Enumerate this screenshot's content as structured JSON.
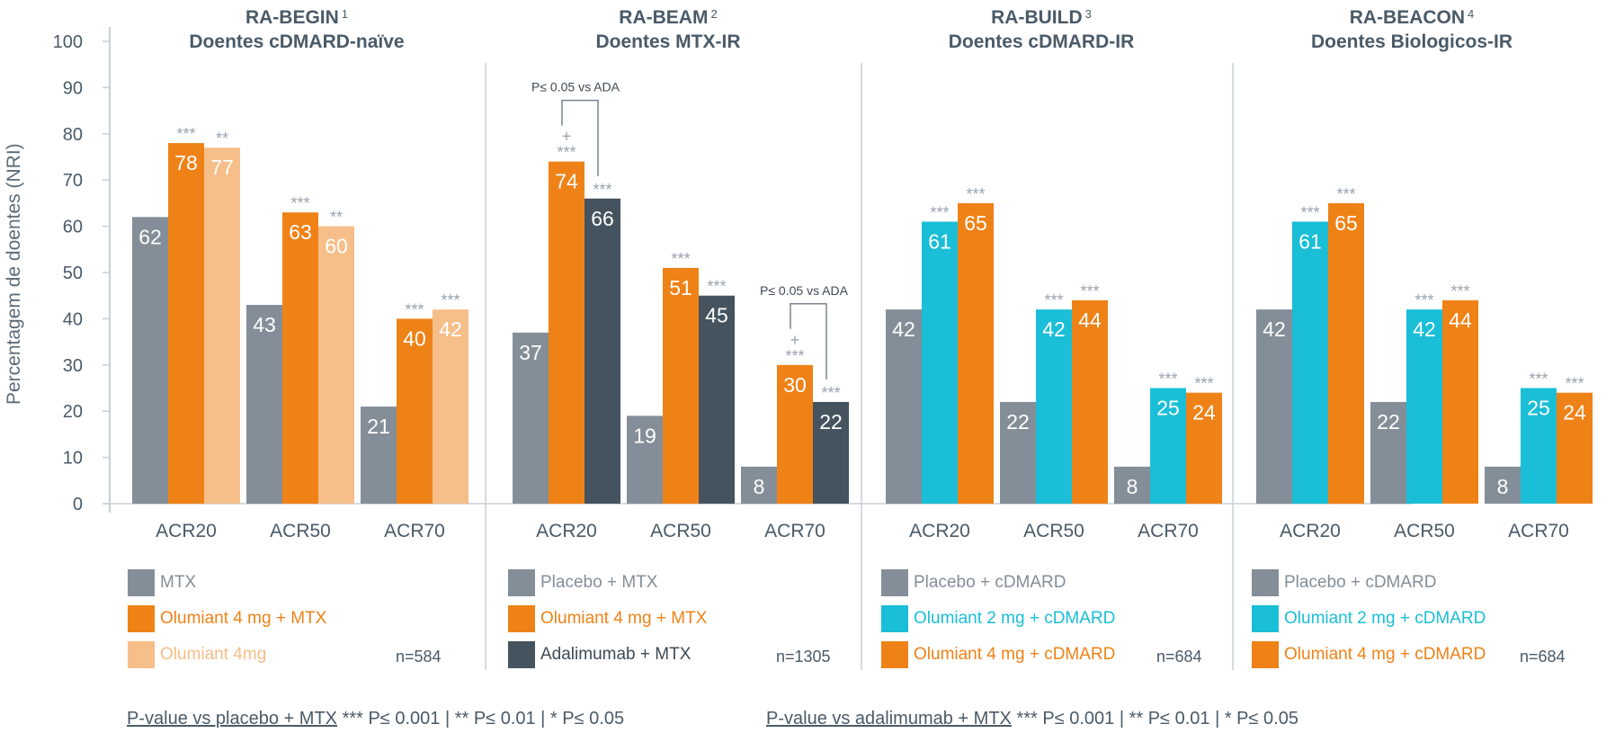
{
  "colors": {
    "gray": "#848e98",
    "orange": "#ef8217",
    "light_orange": "#f6be88",
    "dark_slate": "#44535e",
    "cyan": "#1abed6",
    "axis": "#c9cfd5",
    "text": "#4a5a68",
    "asterisk": "#9aa3ad"
  },
  "chart_data": {
    "type": "bar",
    "ylabel": "Percentagem de doentes (NRI)",
    "ylim": [
      0,
      100
    ],
    "yticks": [
      "0",
      "10",
      "20",
      "30",
      "40",
      "50",
      "60",
      "70",
      "80",
      "90",
      "100"
    ],
    "grid": false,
    "panels": [
      {
        "study": "RA-BEGIN",
        "ref": "1",
        "population": "Doentes cDMARD-naïve",
        "categories": [
          "ACR20",
          "ACR50",
          "ACR70"
        ],
        "series": [
          {
            "name": "MTX",
            "color_key": "gray",
            "values": [
              62,
              43,
              21
            ],
            "sig": [
              "",
              "",
              ""
            ]
          },
          {
            "name": "Olumiant 4 mg + MTX",
            "color_key": "orange",
            "values": [
              78,
              63,
              40
            ],
            "sig": [
              "***",
              "***",
              "***"
            ]
          },
          {
            "name": "Olumiant 4mg",
            "color_key": "light_orange",
            "values": [
              77,
              60,
              42
            ],
            "sig": [
              "**",
              "**",
              "***"
            ]
          }
        ],
        "n": "n=584",
        "annotations": []
      },
      {
        "study": "RA-BEAM",
        "ref": "2",
        "population": "Doentes MTX-IR",
        "categories": [
          "ACR20",
          "ACR50",
          "ACR70"
        ],
        "series": [
          {
            "name": "Placebo + MTX",
            "color_key": "gray",
            "values": [
              37,
              19,
              8
            ],
            "sig": [
              "",
              "",
              ""
            ]
          },
          {
            "name": "Olumiant 4 mg + MTX",
            "color_key": "orange",
            "values": [
              74,
              51,
              30
            ],
            "sig": [
              "+\n***",
              "***",
              "+\n***"
            ]
          },
          {
            "name": "Adalimumab + MTX",
            "color_key": "dark_slate",
            "values": [
              66,
              45,
              22
            ],
            "sig": [
              "***",
              "***",
              "***"
            ]
          }
        ],
        "n": "n=1305",
        "annotations": [
          {
            "category": "ACR20",
            "text": "P≤ 0.05 vs ADA"
          },
          {
            "category": "ACR70",
            "text": "P≤ 0.05 vs ADA"
          }
        ]
      },
      {
        "study": "RA-BUILD",
        "ref": "3",
        "population": "Doentes cDMARD-IR",
        "categories": [
          "ACR20",
          "ACR50",
          "ACR70"
        ],
        "series": [
          {
            "name": "Placebo + cDMARD",
            "color_key": "gray",
            "values": [
              42,
              22,
              8
            ],
            "sig": [
              "",
              "",
              ""
            ]
          },
          {
            "name": "Olumiant 2 mg + cDMARD",
            "color_key": "cyan",
            "values": [
              61,
              42,
              25
            ],
            "sig": [
              "***",
              "***",
              "***"
            ]
          },
          {
            "name": "Olumiant 4 mg + cDMARD",
            "color_key": "orange",
            "values": [
              65,
              44,
              24
            ],
            "sig": [
              "***",
              "***",
              "***"
            ]
          }
        ],
        "n": "n=684",
        "annotations": []
      },
      {
        "study": "RA-BEACON",
        "ref": "4",
        "population": "Doentes Biologicos-IR",
        "categories": [
          "ACR20",
          "ACR50",
          "ACR70"
        ],
        "series": [
          {
            "name": "Placebo + cDMARD",
            "color_key": "gray",
            "values": [
              42,
              22,
              8
            ],
            "sig": [
              "",
              "",
              ""
            ]
          },
          {
            "name": "Olumiant 2 mg + cDMARD",
            "color_key": "cyan",
            "values": [
              61,
              42,
              25
            ],
            "sig": [
              "***",
              "***",
              "***"
            ]
          },
          {
            "name": "Olumiant 4 mg + cDMARD",
            "color_key": "orange",
            "values": [
              65,
              44,
              24
            ],
            "sig": [
              "***",
              "***",
              "***"
            ]
          }
        ],
        "n": "n=684",
        "annotations": []
      }
    ]
  },
  "footnotes": [
    {
      "link": "P-value vs placebo + MTX",
      "text": "*** P≤ 0.001 | ** P≤ 0.01 | * P≤ 0.05"
    },
    {
      "link": "P-value vs adalimumab + MTX",
      "text": "*** P≤ 0.001 | ** P≤ 0.01 | * P≤ 0.05"
    }
  ]
}
